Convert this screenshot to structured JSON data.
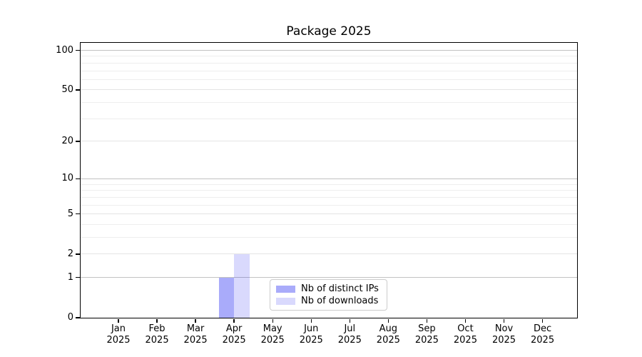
{
  "title": "Package 2025",
  "legend": {
    "items": [
      {
        "label": "Nb of distinct IPs",
        "key": "distinct_ips"
      },
      {
        "label": "Nb of downloads",
        "key": "downloads"
      }
    ]
  },
  "colors": {
    "distinct_ips": "rgba(10,15,240,0.35)",
    "downloads": "rgba(10,15,240,0.155)",
    "decade_gridline": "#c2c2c2",
    "major_gridline": "#e4e4e4",
    "minor_gridline": "#eeeeee",
    "axis_spine": "#000000",
    "text": "#000000",
    "legend_border": "#cccccc"
  },
  "chart_data": {
    "type": "bar",
    "title": "Package 2025",
    "categories": [
      "Jan 2025",
      "Feb 2025",
      "Mar 2025",
      "Apr 2025",
      "May 2025",
      "Jun 2025",
      "Jul 2025",
      "Aug 2025",
      "Sep 2025",
      "Oct 2025",
      "Nov 2025",
      "Dec 2025"
    ],
    "series": [
      {
        "name": "Nb of distinct IPs",
        "key": "distinct_ips",
        "values": [
          0,
          0,
          0,
          1,
          0,
          0,
          0,
          0,
          0,
          0,
          0,
          0
        ]
      },
      {
        "name": "Nb of downloads",
        "key": "downloads",
        "values": [
          0,
          0,
          0,
          2,
          0,
          0,
          0,
          0,
          0,
          0,
          0,
          0
        ]
      }
    ],
    "xlabel": "",
    "ylabel": "",
    "yscale": "log1p",
    "ylim": [
      0,
      114
    ],
    "yticks": [
      0,
      1,
      2,
      5,
      10,
      20,
      50,
      100
    ],
    "minor_yticks": [
      3,
      4,
      6,
      7,
      8,
      9,
      30,
      40,
      60,
      70,
      80,
      90
    ],
    "decade_yticks": [
      1,
      10,
      100
    ],
    "grid": true,
    "legend_position": "inside-bottom-center"
  }
}
